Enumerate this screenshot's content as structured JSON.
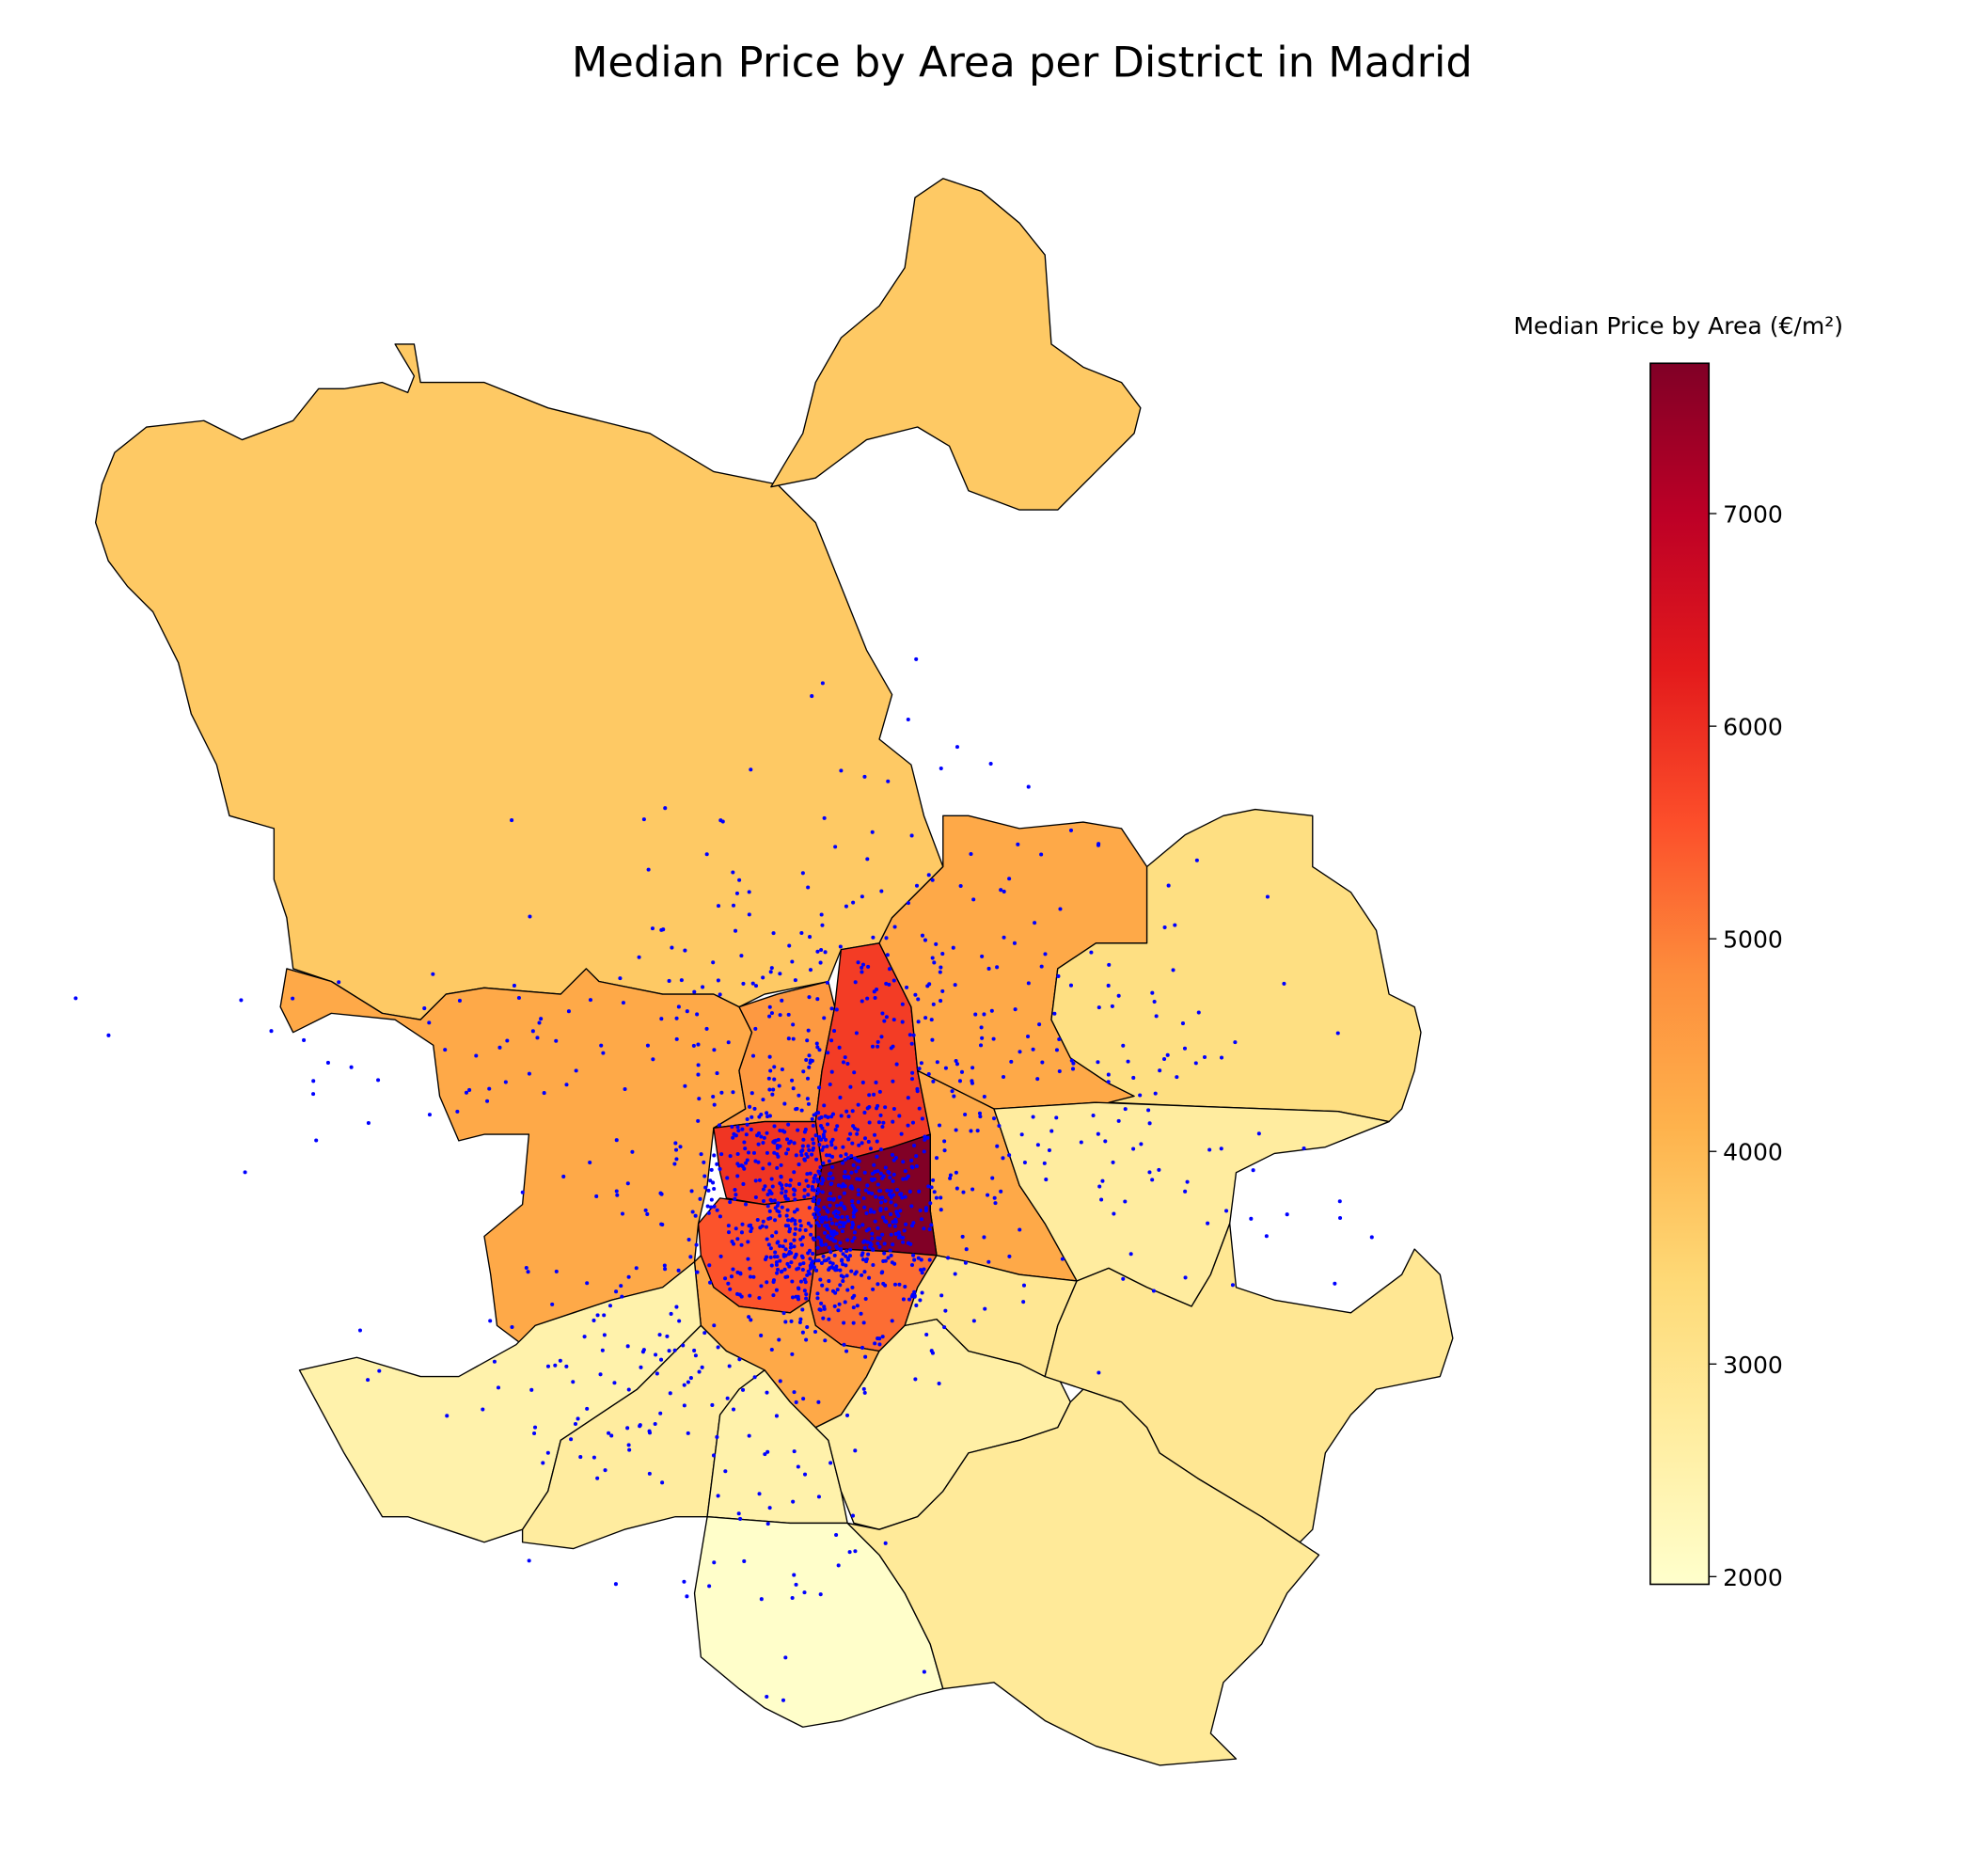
{
  "chart_data": {
    "type": "choropleth",
    "title": "Median Price by Area per District in Madrid",
    "colorbar": {
      "label": "Median Price by Area (€/m²)",
      "range": [
        1964,
        7707
      ],
      "ticks": [
        "2000",
        "3000",
        "4000",
        "5000",
        "6000",
        "7000"
      ],
      "tick_values": [
        2000,
        3000,
        4000,
        5000,
        6000,
        7000
      ],
      "colormap": [
        "#ffffcc",
        "#ffeda0",
        "#fed976",
        "#feb24c",
        "#fd8d3c",
        "#fc4e2a",
        "#e31a1c",
        "#bd0026",
        "#800026"
      ]
    },
    "districts": [
      {
        "value": 3700
      },
      {
        "value": 3700
      },
      {
        "value": 4300
      },
      {
        "value": 4600
      },
      {
        "value": 5800
      },
      {
        "value": 4300
      },
      {
        "value": 3200
      },
      {
        "value": 4300
      },
      {
        "value": 2700
      },
      {
        "value": 5900
      },
      {
        "value": 7700
      },
      {
        "value": 5500
      },
      {
        "value": 5200
      },
      {
        "value": 4300
      },
      {
        "value": 2500
      },
      {
        "value": 2700
      },
      {
        "value": 2500
      },
      {
        "value": 1990
      },
      {
        "value": 2600
      },
      {
        "value": 2900
      },
      {
        "value": 2900
      },
      {
        "value": 2800
      }
    ],
    "listings_color": "#0000ff",
    "listings_count_approx": 1500
  }
}
